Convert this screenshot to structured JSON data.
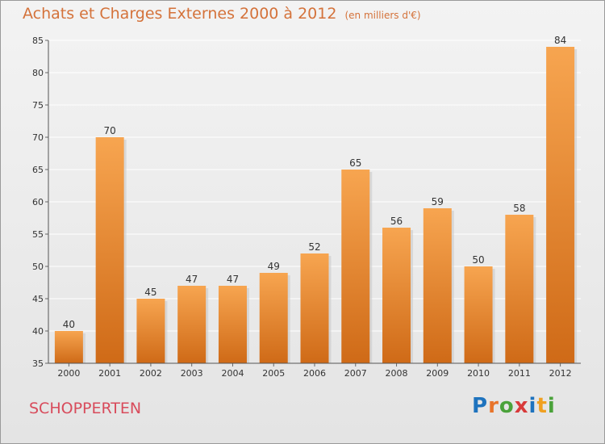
{
  "title": "Achats et Charges Externes 2000 à 2012",
  "subtitle": "(en milliers d'€)",
  "place": "SCHOPPERTEN",
  "logo": {
    "letters": [
      "P",
      "r",
      "o",
      "x",
      "i",
      "t",
      "i"
    ],
    "colors": [
      "#1e73be",
      "#e8742a",
      "#4aa23a",
      "#d83a3a",
      "#1e73be",
      "#f0a020",
      "#4aa23a"
    ]
  },
  "colors": {
    "bar_top": "#f7a550",
    "bar_bottom": "#cf6a17",
    "title": "#d4723a",
    "place": "#d84b5b"
  },
  "chart_data": {
    "type": "bar",
    "categories": [
      "2000",
      "2001",
      "2002",
      "2003",
      "2004",
      "2005",
      "2006",
      "2007",
      "2008",
      "2009",
      "2010",
      "2011",
      "2012"
    ],
    "values": [
      40,
      70,
      45,
      47,
      47,
      49,
      52,
      65,
      56,
      59,
      50,
      58,
      84
    ],
    "ylim": [
      35,
      85
    ],
    "yticks": [
      35,
      40,
      45,
      50,
      55,
      60,
      65,
      70,
      75,
      80,
      85
    ],
    "grid": true,
    "data_labels": true
  }
}
